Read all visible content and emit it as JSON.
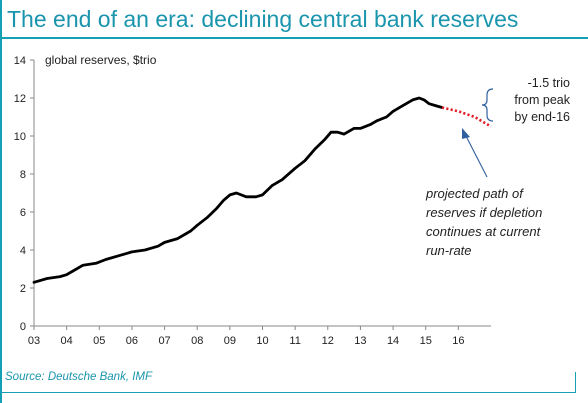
{
  "title": "The end of an era: declining central bank reserves",
  "source": "Source: Deutsche Bank, IMF",
  "colors": {
    "accent": "#1a95ad",
    "series": "#000000",
    "projection": "#e0202a",
    "arrow": "#2f5f9e"
  },
  "chart_data": {
    "type": "line",
    "ylabel": "global reserves, $trio",
    "ylim": [
      0,
      14
    ],
    "yticks": [
      "0",
      "2",
      "4",
      "6",
      "8",
      "10",
      "12",
      "14"
    ],
    "xlim": [
      2003,
      2017
    ],
    "xticks": [
      "03",
      "04",
      "05",
      "06",
      "07",
      "08",
      "09",
      "10",
      "11",
      "12",
      "13",
      "14",
      "15",
      "16"
    ],
    "series": [
      {
        "style": "actual",
        "points": [
          [
            2003.0,
            2.3
          ],
          [
            2003.4,
            2.5
          ],
          [
            2003.8,
            2.6
          ],
          [
            2004.0,
            2.7
          ],
          [
            2004.2,
            2.9
          ],
          [
            2004.5,
            3.2
          ],
          [
            2004.9,
            3.3
          ],
          [
            2005.2,
            3.5
          ],
          [
            2005.6,
            3.7
          ],
          [
            2006.0,
            3.9
          ],
          [
            2006.4,
            4.0
          ],
          [
            2006.8,
            4.2
          ],
          [
            2007.0,
            4.4
          ],
          [
            2007.4,
            4.6
          ],
          [
            2007.8,
            5.0
          ],
          [
            2008.0,
            5.3
          ],
          [
            2008.3,
            5.7
          ],
          [
            2008.6,
            6.2
          ],
          [
            2008.8,
            6.6
          ],
          [
            2009.0,
            6.9
          ],
          [
            2009.2,
            7.0
          ],
          [
            2009.5,
            6.8
          ],
          [
            2009.8,
            6.8
          ],
          [
            2010.0,
            6.9
          ],
          [
            2010.3,
            7.4
          ],
          [
            2010.6,
            7.7
          ],
          [
            2011.0,
            8.3
          ],
          [
            2011.3,
            8.7
          ],
          [
            2011.6,
            9.3
          ],
          [
            2011.9,
            9.8
          ],
          [
            2012.1,
            10.2
          ],
          [
            2012.3,
            10.2
          ],
          [
            2012.5,
            10.1
          ],
          [
            2012.8,
            10.4
          ],
          [
            2013.0,
            10.4
          ],
          [
            2013.3,
            10.6
          ],
          [
            2013.5,
            10.8
          ],
          [
            2013.8,
            11.0
          ],
          [
            2014.0,
            11.3
          ],
          [
            2014.3,
            11.6
          ],
          [
            2014.6,
            11.9
          ],
          [
            2014.8,
            12.0
          ],
          [
            2014.95,
            11.9
          ],
          [
            2015.1,
            11.7
          ],
          [
            2015.3,
            11.6
          ],
          [
            2015.5,
            11.5
          ]
        ]
      },
      {
        "style": "projection",
        "points": [
          [
            2015.5,
            11.5
          ],
          [
            2016.0,
            11.3
          ],
          [
            2016.5,
            11.0
          ],
          [
            2017.0,
            10.5
          ]
        ]
      }
    ],
    "annotations": {
      "peak_note": [
        "-1.5 trio",
        "from peak",
        "by end-16"
      ],
      "projection_note": [
        "projected path of",
        "reserves  if depletion",
        "continues at current",
        "run-rate"
      ]
    }
  }
}
